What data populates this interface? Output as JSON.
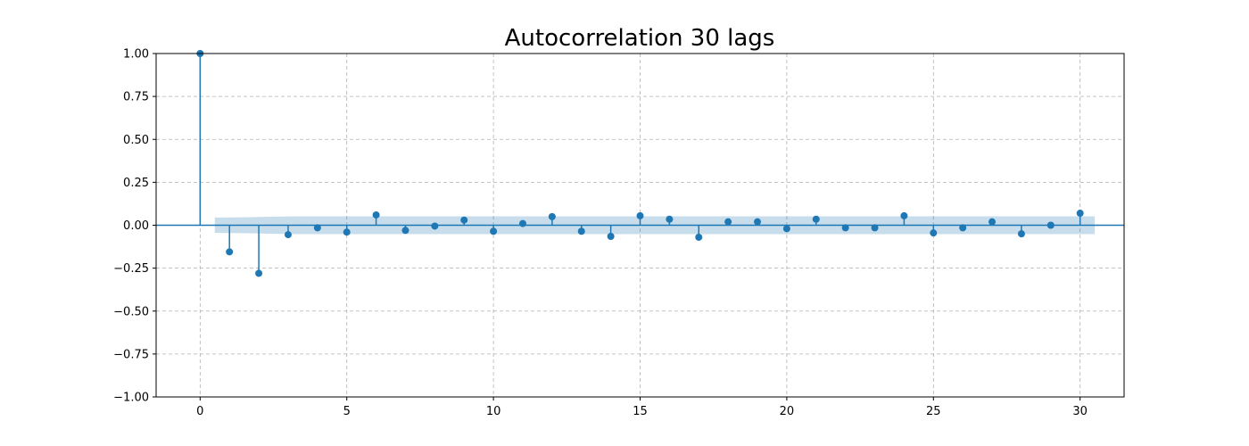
{
  "chart_data": {
    "type": "stem",
    "title": "Autocorrelation 30 lags",
    "xlabel": "",
    "ylabel": "",
    "xlim": [
      -1.5,
      31.5
    ],
    "ylim": [
      -1.0,
      1.0
    ],
    "x_ticks": [
      0,
      5,
      10,
      15,
      20,
      25,
      30
    ],
    "x_tick_labels": [
      "0",
      "5",
      "10",
      "15",
      "20",
      "25",
      "30"
    ],
    "y_ticks": [
      1.0,
      0.75,
      0.5,
      0.25,
      0.0,
      -0.25,
      -0.5,
      -0.75,
      -1.0
    ],
    "y_tick_labels": [
      "1.00",
      "0.75",
      "0.50",
      "0.25",
      "0.00",
      "−0.25",
      "−0.50",
      "−0.75",
      "−1.00"
    ],
    "grid": true,
    "lags": [
      0,
      1,
      2,
      3,
      4,
      5,
      6,
      7,
      8,
      9,
      10,
      11,
      12,
      13,
      14,
      15,
      16,
      17,
      18,
      19,
      20,
      21,
      22,
      23,
      24,
      25,
      26,
      27,
      28,
      29,
      30
    ],
    "values": [
      1.0,
      -0.155,
      -0.28,
      -0.055,
      -0.015,
      -0.04,
      0.06,
      -0.03,
      -0.005,
      0.03,
      -0.035,
      0.01,
      0.05,
      -0.035,
      -0.065,
      0.055,
      0.035,
      -0.07,
      0.02,
      0.02,
      -0.02,
      0.035,
      -0.015,
      -0.015,
      0.055,
      -0.045,
      -0.015,
      0.02,
      -0.05,
      0.0,
      0.07
    ],
    "confidence_band": {
      "x": [
        0.5,
        1.5,
        2.5,
        3.5,
        30.5
      ],
      "upper": [
        0.045,
        0.046,
        0.05,
        0.052,
        0.052
      ],
      "lower": [
        -0.045,
        -0.046,
        -0.05,
        -0.052,
        -0.052
      ]
    },
    "colors": {
      "stem": "#1f77b4",
      "band": "#1f77b4",
      "grid": "#b0b0b0"
    }
  }
}
